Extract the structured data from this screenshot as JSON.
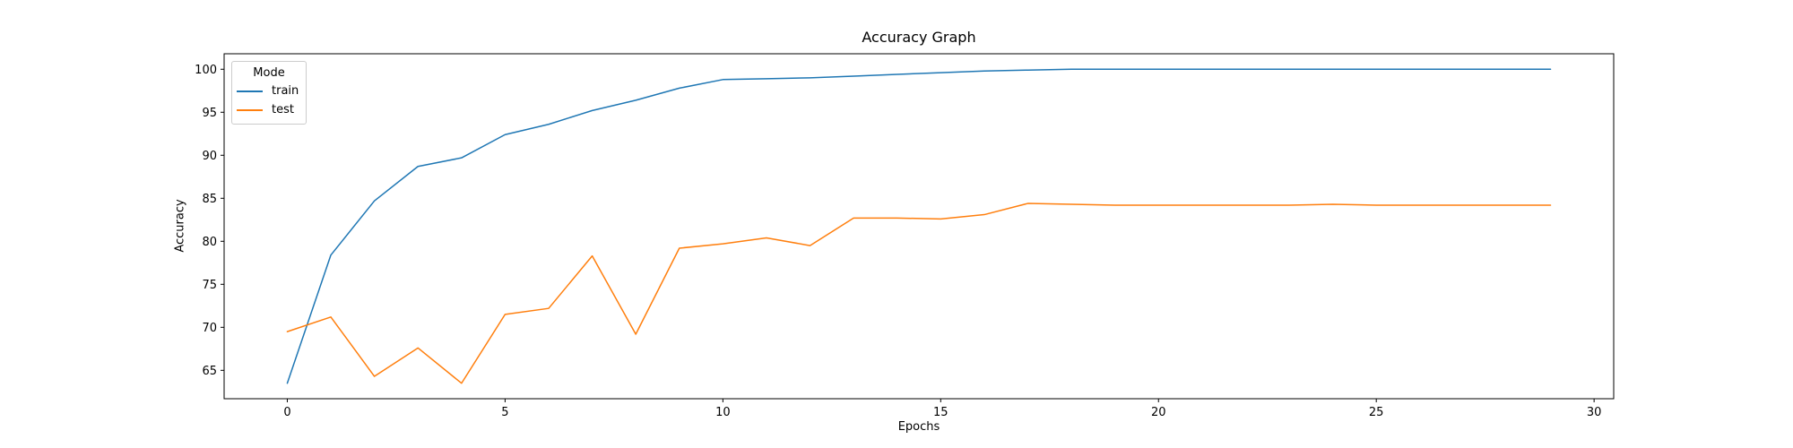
{
  "chart": {
    "title": "Accuracy Graph",
    "xlabel": "Epochs",
    "ylabel": "Accuracy",
    "legend": {
      "title": "Mode",
      "items": [
        {
          "label": "train",
          "color": "#1f77b4"
        },
        {
          "label": "test",
          "color": "#ff7f0e"
        }
      ]
    }
  },
  "chart_data": {
    "type": "line",
    "title": "Accuracy Graph",
    "xlabel": "Epochs",
    "ylabel": "Accuracy",
    "grid": false,
    "legend_position": "upper left",
    "legend_title": "Mode",
    "x": [
      0,
      1,
      2,
      3,
      4,
      5,
      6,
      7,
      8,
      9,
      10,
      11,
      12,
      13,
      14,
      15,
      16,
      17,
      18,
      19,
      20,
      21,
      22,
      23,
      24,
      25,
      26,
      27,
      28,
      29
    ],
    "series": [
      {
        "name": "train",
        "color": "#1f77b4",
        "values": [
          63.5,
          78.4,
          84.7,
          88.7,
          89.7,
          92.4,
          93.6,
          95.2,
          96.4,
          97.8,
          98.8,
          98.9,
          99.0,
          99.2,
          99.4,
          99.6,
          99.8,
          99.9,
          100.0,
          100.0,
          100.0,
          100.0,
          100.0,
          100.0,
          100.0,
          100.0,
          100.0,
          100.0,
          100.0,
          100.0
        ]
      },
      {
        "name": "test",
        "color": "#ff7f0e",
        "values": [
          69.5,
          71.2,
          64.3,
          67.6,
          63.5,
          71.5,
          72.2,
          78.3,
          69.2,
          79.2,
          79.7,
          80.4,
          79.5,
          82.7,
          82.7,
          82.6,
          83.1,
          84.4,
          84.3,
          84.2,
          84.2,
          84.2,
          84.2,
          84.2,
          84.3,
          84.2,
          84.2,
          84.2,
          84.2,
          84.2
        ]
      }
    ],
    "xlim": [
      -1.45,
      30.45
    ],
    "ylim": [
      61.7,
      101.8
    ],
    "xticks": [
      0,
      5,
      10,
      15,
      20,
      25,
      30
    ],
    "yticks": [
      65,
      70,
      75,
      80,
      85,
      90,
      95,
      100
    ]
  }
}
